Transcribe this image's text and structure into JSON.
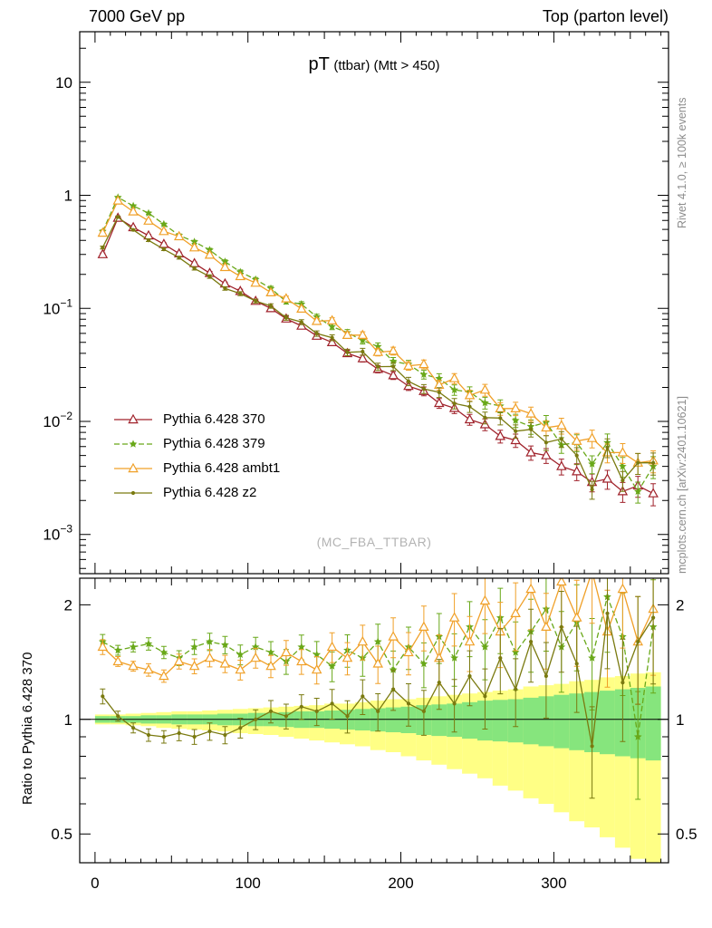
{
  "header": {
    "left": "7000 GeV pp",
    "right": "Top (parton level)"
  },
  "title": {
    "pt": "pT",
    "rest": "(ttbar) (Mtt > 450)"
  },
  "watermark": "(MC_FBA_TTBAR)",
  "side_notes": {
    "rivet": "Rivet 4.1.0, ≥ 100k events",
    "mcplots": "mcplots.cern.ch [arXiv:2401.10621]"
  },
  "legend": [
    {
      "label": "Pythia 6.428 370",
      "color": "#a0222b",
      "marker": "triangle-open",
      "line": "solid"
    },
    {
      "label": "Pythia 6.428 379",
      "color": "#69a819",
      "marker": "star",
      "line": "dashed"
    },
    {
      "label": "Pythia 6.428 ambt1",
      "color": "#f0a028",
      "marker": "triangle-open",
      "line": "solid"
    },
    {
      "label": "Pythia 6.428 z2",
      "color": "#7a7a10",
      "marker": "dot",
      "line": "solid"
    }
  ],
  "axes": {
    "x_ticks_labeled": [
      {
        "v": 0,
        "t": "0"
      },
      {
        "v": 100,
        "t": "100"
      },
      {
        "v": 200,
        "t": "200"
      },
      {
        "v": 300,
        "t": "300"
      }
    ],
    "main_y_ticks": [
      {
        "v": 10,
        "b": "10",
        "e": ""
      },
      {
        "v": 1,
        "b": "1",
        "e": ""
      },
      {
        "v": 0.1,
        "b": "10",
        "e": "−1"
      },
      {
        "v": 0.01,
        "b": "10",
        "e": "−2"
      },
      {
        "v": 0.001,
        "b": "10",
        "e": "−3"
      }
    ],
    "ratio_y_ticks": [
      {
        "v": 0.5,
        "t": "0.5"
      },
      {
        "v": 1,
        "t": "1"
      },
      {
        "v": 2,
        "t": "2"
      }
    ],
    "ratio_y_minor": [
      0.6,
      0.7,
      0.8,
      0.9
    ]
  },
  "chart_data": [
    {
      "type": "line",
      "title": "pT (ttbar) (Mtt > 450)",
      "xlabel": "",
      "ylabel": "",
      "xscale": "linear",
      "yscale": "log",
      "xlim": [
        -10,
        375
      ],
      "ylim": [
        0.00045,
        28
      ],
      "legend_position": "middle-left",
      "grid": false,
      "x": [
        5,
        15,
        25,
        35,
        45,
        55,
        65,
        75,
        85,
        95,
        105,
        115,
        125,
        135,
        145,
        155,
        165,
        175,
        185,
        195,
        205,
        215,
        225,
        235,
        245,
        255,
        265,
        275,
        285,
        295,
        305,
        315,
        325,
        335,
        345,
        355,
        365
      ],
      "rel_err": [
        0.03,
        0.02,
        0.02,
        0.025,
        0.025,
        0.03,
        0.03,
        0.035,
        0.035,
        0.04,
        0.04,
        0.045,
        0.05,
        0.05,
        0.055,
        0.06,
        0.065,
        0.07,
        0.075,
        0.08,
        0.085,
        0.09,
        0.1,
        0.105,
        0.11,
        0.12,
        0.13,
        0.135,
        0.145,
        0.15,
        0.16,
        0.17,
        0.18,
        0.19,
        0.2,
        0.21,
        0.22
      ],
      "series": [
        {
          "name": "Pythia 6.428 370",
          "color": "#a0222b",
          "marker": "triangle-open",
          "line": "solid",
          "values": [
            0.3,
            0.63,
            0.52,
            0.44,
            0.37,
            0.305,
            0.25,
            0.205,
            0.165,
            0.142,
            0.116,
            0.1,
            0.081,
            0.07,
            0.057,
            0.05,
            0.04,
            0.036,
            0.029,
            0.0255,
            0.0205,
            0.0185,
            0.0145,
            0.0131,
            0.0104,
            0.0094,
            0.0074,
            0.0068,
            0.0053,
            0.005,
            0.004,
            0.0036,
            0.0029,
            0.0031,
            0.0024,
            0.0027,
            0.0023
          ]
        },
        {
          "name": "Pythia 6.428 379",
          "color": "#69a819",
          "marker": "star",
          "line": "dashed",
          "values": [
            0.48,
            0.958,
            0.806,
            0.695,
            0.555,
            0.442,
            0.388,
            0.328,
            0.259,
            0.21,
            0.18,
            0.15,
            0.115,
            0.109,
            0.084,
            0.069,
            0.061,
            0.052,
            0.046,
            0.034,
            0.032,
            0.026,
            0.024,
            0.019,
            0.0182,
            0.0146,
            0.0137,
            0.0102,
            0.009,
            0.0098,
            0.0062,
            0.0065,
            0.0042,
            0.0065,
            0.004,
            0.0024,
            0.004
          ]
        },
        {
          "name": "Pythia 6.428 ambt1",
          "color": "#f0a028",
          "marker": "triangle-open",
          "line": "solid",
          "values": [
            0.465,
            0.895,
            0.718,
            0.594,
            0.481,
            0.433,
            0.345,
            0.297,
            0.231,
            0.192,
            0.168,
            0.138,
            0.122,
            0.099,
            0.077,
            0.078,
            0.058,
            0.058,
            0.041,
            0.042,
            0.031,
            0.032,
            0.021,
            0.024,
            0.017,
            0.019,
            0.013,
            0.013,
            0.0117,
            0.0088,
            0.0092,
            0.0067,
            0.0071,
            0.0053,
            0.0053,
            0.0043,
            0.0045
          ]
        },
        {
          "name": "Pythia 6.428 z2",
          "color": "#7a7a10",
          "marker": "dot",
          "line": "solid",
          "values": [
            0.345,
            0.643,
            0.494,
            0.4,
            0.333,
            0.281,
            0.225,
            0.191,
            0.15,
            0.135,
            0.116,
            0.105,
            0.0826,
            0.0756,
            0.0599,
            0.055,
            0.0408,
            0.0414,
            0.0305,
            0.0306,
            0.0226,
            0.0194,
            0.0181,
            0.0144,
            0.0135,
            0.0108,
            0.0107,
            0.0082,
            0.0085,
            0.0065,
            0.007,
            0.005,
            0.0025,
            0.0059,
            0.003,
            0.0043,
            0.0043
          ]
        }
      ]
    },
    {
      "type": "line",
      "subtype": "ratio",
      "ylabel": "Ratio to Pythia 6.428 370",
      "yscale": "log",
      "ylim": [
        0.42,
        2.35
      ],
      "reference": "Pythia 6.428 370",
      "x_same_as_main": true,
      "series": [
        {
          "name": "Pythia 6.428 379",
          "color": "#69a819",
          "marker": "star",
          "line": "dashed",
          "values": [
            1.6,
            1.52,
            1.55,
            1.58,
            1.5,
            1.45,
            1.55,
            1.6,
            1.57,
            1.48,
            1.55,
            1.5,
            1.42,
            1.55,
            1.48,
            1.38,
            1.52,
            1.45,
            1.6,
            1.35,
            1.55,
            1.4,
            1.65,
            1.45,
            1.75,
            1.55,
            1.85,
            1.5,
            1.7,
            1.95,
            1.55,
            1.8,
            1.45,
            2.1,
            1.65,
            0.9,
            1.75
          ]
        },
        {
          "name": "Pythia 6.428 ambt1",
          "color": "#f0a028",
          "marker": "triangle-open",
          "line": "solid",
          "values": [
            1.55,
            1.42,
            1.38,
            1.35,
            1.3,
            1.42,
            1.38,
            1.45,
            1.4,
            1.35,
            1.45,
            1.38,
            1.5,
            1.42,
            1.35,
            1.55,
            1.45,
            1.6,
            1.4,
            1.65,
            1.5,
            1.75,
            1.45,
            1.85,
            1.6,
            2.05,
            1.7,
            1.9,
            2.2,
            1.75,
            2.3,
            1.85,
            2.45,
            1.7,
            2.2,
            1.6,
            1.95
          ]
        },
        {
          "name": "Pythia 6.428 z2",
          "color": "#7a7a10",
          "marker": "dot",
          "line": "solid",
          "values": [
            1.15,
            1.02,
            0.95,
            0.91,
            0.9,
            0.92,
            0.9,
            0.93,
            0.91,
            0.95,
            1.0,
            1.05,
            1.02,
            1.08,
            1.05,
            1.1,
            1.02,
            1.15,
            1.05,
            1.2,
            1.1,
            1.05,
            1.25,
            1.1,
            1.3,
            1.15,
            1.45,
            1.2,
            1.6,
            1.3,
            1.75,
            1.4,
            0.85,
            1.9,
            1.25,
            1.6,
            1.85
          ]
        }
      ],
      "bands": {
        "green_color": "#86e57d",
        "yellow_color": "#ffff85",
        "green_half_width": [
          0.02,
          0.02,
          0.02,
          0.025,
          0.025,
          0.03,
          0.03,
          0.03,
          0.035,
          0.035,
          0.04,
          0.04,
          0.045,
          0.05,
          0.05,
          0.055,
          0.06,
          0.065,
          0.07,
          0.075,
          0.08,
          0.09,
          0.095,
          0.1,
          0.11,
          0.12,
          0.125,
          0.13,
          0.14,
          0.15,
          0.16,
          0.17,
          0.18,
          0.19,
          0.2,
          0.21,
          0.22
        ],
        "yellow_up": [
          0.03,
          0.03,
          0.035,
          0.04,
          0.045,
          0.05,
          0.05,
          0.055,
          0.06,
          0.065,
          0.07,
          0.075,
          0.08,
          0.085,
          0.09,
          0.1,
          0.1,
          0.11,
          0.12,
          0.13,
          0.13,
          0.14,
          0.15,
          0.16,
          0.17,
          0.18,
          0.19,
          0.2,
          0.22,
          0.23,
          0.24,
          0.26,
          0.27,
          0.29,
          0.3,
          0.32,
          0.33
        ],
        "yellow_down": [
          0.03,
          0.03,
          0.035,
          0.04,
          0.05,
          0.055,
          0.06,
          0.065,
          0.07,
          0.08,
          0.085,
          0.09,
          0.1,
          0.11,
          0.12,
          0.13,
          0.14,
          0.15,
          0.17,
          0.18,
          0.2,
          0.22,
          0.24,
          0.26,
          0.28,
          0.3,
          0.33,
          0.35,
          0.38,
          0.4,
          0.43,
          0.46,
          0.48,
          0.51,
          0.54,
          0.57,
          0.6
        ]
      }
    }
  ]
}
